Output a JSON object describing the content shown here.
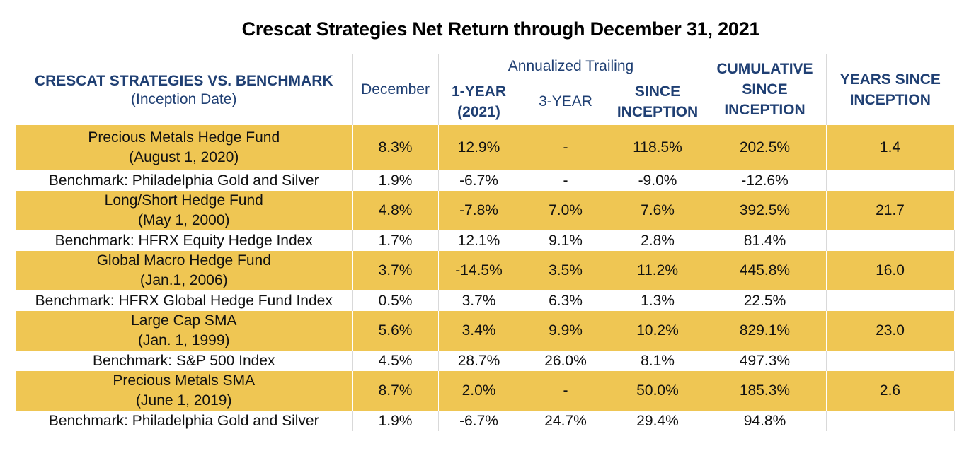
{
  "title": "Crescat Strategies Net Return through December 31, 2021",
  "header": {
    "strategy_col": "CRESCAT STRATEGIES VS. BENCHMARK",
    "strategy_sub": "(Inception Date)",
    "december": "December",
    "annualized_group": "Annualized Trailing",
    "one_year_line1": "1-YEAR",
    "one_year_line2": "(2021)",
    "three_year": "3-YEAR",
    "since_line1": "SINCE",
    "since_line2": "INCEPTION",
    "cumulative_line1": "CUMULATIVE",
    "cumulative_line2": "SINCE",
    "cumulative_line3": "INCEPTION",
    "years_line1": "YEARS SINCE",
    "years_line2": "INCEPTION"
  },
  "rows": [
    {
      "fund": {
        "name": "Precious Metals Hedge Fund",
        "date": "(August 1, 2020)",
        "december": "8.3%",
        "one_year": "12.9%",
        "three_year": "-",
        "since": "118.5%",
        "cumulative": "202.5%",
        "years": "1.4"
      },
      "bench": {
        "name": "Benchmark: Philadelphia Gold and Silver",
        "december": "1.9%",
        "one_year": "-6.7%",
        "three_year": "-",
        "since": "-9.0%",
        "cumulative": "-12.6%"
      }
    },
    {
      "fund": {
        "name": "Long/Short Hedge Fund",
        "date": "(May 1, 2000)",
        "december": "4.8%",
        "one_year": "-7.8%",
        "three_year": "7.0%",
        "since": "7.6%",
        "cumulative": "392.5%",
        "years": "21.7"
      },
      "bench": {
        "name": "Benchmark: HFRX Equity Hedge Index",
        "december": "1.7%",
        "one_year": "12.1%",
        "three_year": "9.1%",
        "since": "2.8%",
        "cumulative": "81.4%"
      }
    },
    {
      "fund": {
        "name": "Global Macro Hedge Fund",
        "date": "(Jan.1, 2006)",
        "december": "3.7%",
        "one_year": "-14.5%",
        "three_year": "3.5%",
        "since": "11.2%",
        "cumulative": "445.8%",
        "years": "16.0"
      },
      "bench": {
        "name": "Benchmark: HFRX Global Hedge Fund Index",
        "december": "0.5%",
        "one_year": "3.7%",
        "three_year": "6.3%",
        "since": "1.3%",
        "cumulative": "22.5%"
      }
    },
    {
      "fund": {
        "name": "Large Cap SMA",
        "date": "(Jan. 1, 1999)",
        "december": "5.6%",
        "one_year": "3.4%",
        "three_year": "9.9%",
        "since": "10.2%",
        "cumulative": "829.1%",
        "years": "23.0"
      },
      "bench": {
        "name": "Benchmark: S&P 500 Index",
        "december": "4.5%",
        "one_year": "28.7%",
        "three_year": "26.0%",
        "since": "8.1%",
        "cumulative": "497.3%"
      }
    },
    {
      "fund": {
        "name": "Precious Metals SMA",
        "date": "(June 1, 2019)",
        "december": "8.7%",
        "one_year": "2.0%",
        "three_year": "-",
        "since": "50.0%",
        "cumulative": "185.3%",
        "years": "2.6"
      },
      "bench": {
        "name": "Benchmark: Philadelphia Gold and Silver",
        "december": "1.9%",
        "one_year": "-6.7%",
        "three_year": "24.7%",
        "since": "29.4%",
        "cumulative": "94.8%"
      }
    }
  ],
  "colors": {
    "header_text": "#1f3f73",
    "fund_row_bg": "#efc653",
    "grid_line": "#d9d9d9"
  }
}
